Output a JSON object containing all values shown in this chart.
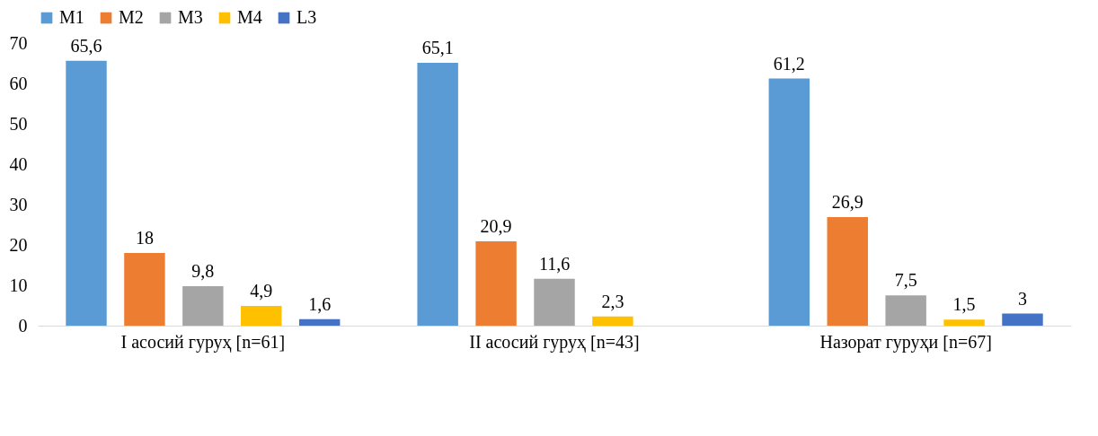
{
  "chart_data": {
    "type": "bar",
    "categories": [
      "I асосий гуруҳ [n=61]",
      "II асосий гуруҳ [n=43]",
      "Назорат гуруҳи [n=67]"
    ],
    "series": [
      {
        "name": "M1",
        "color": "#5b9bd5",
        "values": [
          65.6,
          65.1,
          61.2
        ],
        "value_labels": [
          "65,6",
          "65,1",
          "61,2"
        ]
      },
      {
        "name": "M2",
        "color": "#ed7d31",
        "values": [
          18,
          20.9,
          26.9
        ],
        "value_labels": [
          "18",
          "20,9",
          "26,9"
        ]
      },
      {
        "name": "M3",
        "color": "#a5a5a5",
        "values": [
          9.8,
          11.6,
          7.5
        ],
        "value_labels": [
          "9,8",
          "11,6",
          "7,5"
        ]
      },
      {
        "name": "M4",
        "color": "#ffc000",
        "values": [
          4.9,
          2.3,
          1.5
        ],
        "value_labels": [
          "4,9",
          "2,3",
          "1,5"
        ]
      },
      {
        "name": "L3",
        "color": "#4472c4",
        "values": [
          1.6,
          null,
          3
        ],
        "value_labels": [
          "1,6",
          null,
          "3"
        ]
      }
    ],
    "ylim": [
      0,
      70
    ],
    "yticks": [
      0,
      10,
      20,
      30,
      40,
      50,
      60,
      70
    ],
    "grid": false,
    "legend": "top"
  }
}
